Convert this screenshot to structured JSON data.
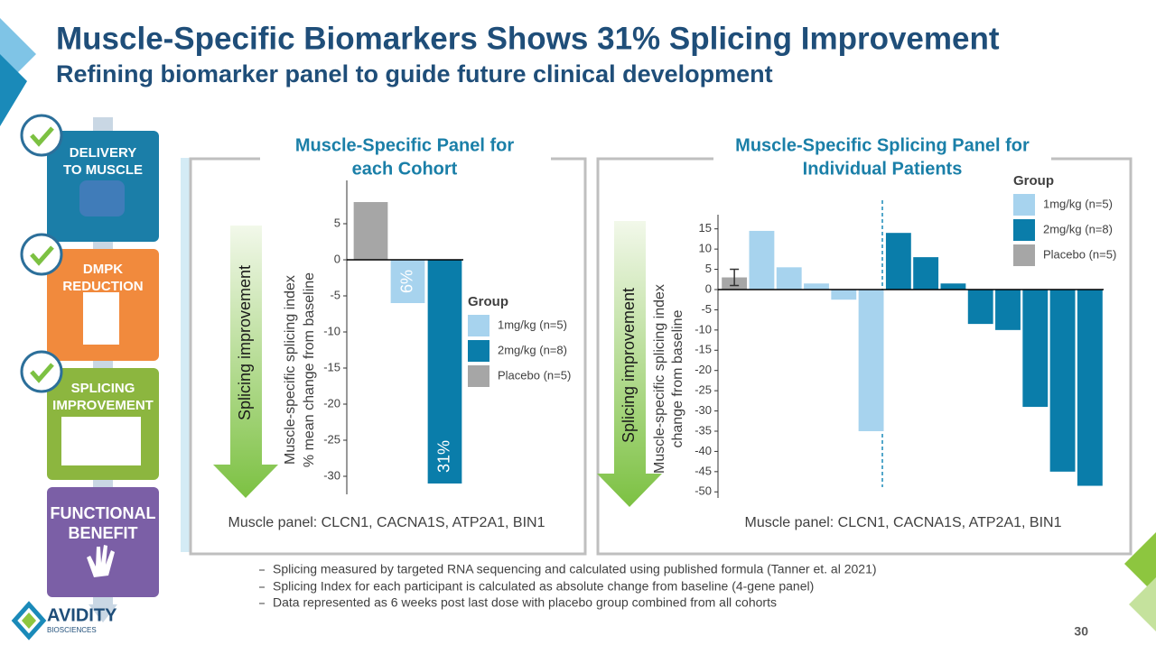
{
  "title": "Muscle-Specific Biomarkers Shows 31% Splicing Improvement",
  "subtitle": "Refining biomarker panel to guide future clinical development",
  "steps": [
    [
      "DELIVERY",
      "TO MUSCLE"
    ],
    [
      "DMPK",
      "REDUCTION"
    ],
    [
      "SPLICING",
      "IMPROVEMENT"
    ],
    [
      "FUNCTIONAL",
      "BENEFIT"
    ]
  ],
  "chart_data": [
    {
      "type": "bar",
      "title": [
        "Muscle-Specific Panel for",
        "each Cohort"
      ],
      "y_label": [
        "Muscle-specific splicing index",
        "% mean change from baseline"
      ],
      "arrow_label": "Splicing improvement",
      "note": "Muscle panel: CLCN1, CACNA1S, ATP2A1, BIN1",
      "legend_title": "Group",
      "categories": [
        null,
        null,
        null
      ],
      "series": [
        {
          "name": "1mg/kg (n=5)",
          "color": "#a7d3ee",
          "values": [
            null,
            -6,
            null
          ],
          "value_labels": [
            null,
            "6%",
            null
          ]
        },
        {
          "name": "2mg/kg (n=8)",
          "color": "#0a7daa",
          "values": [
            null,
            null,
            -31
          ],
          "value_labels": [
            null,
            null,
            "31%"
          ]
        },
        {
          "name": "Placebo (n=5)",
          "color": "#a6a6a6",
          "values": [
            8,
            null,
            null
          ]
        }
      ],
      "ylim": [
        -32.5,
        11
      ],
      "yticks": [
        5,
        0,
        -5,
        -10,
        -15,
        -20,
        -25,
        -30
      ]
    },
    {
      "type": "bar",
      "title": [
        "Muscle-Specific Splicing Panel for",
        "Individual Patients"
      ],
      "y_label": [
        "Muscle-specific splicing index",
        "change from baseline"
      ],
      "arrow_label": "Splicing improvement",
      "note": "Muscle panel: CLCN1, CACNA1S, ATP2A1, BIN1",
      "legend_title": "Group",
      "categories": [
        null,
        null,
        null,
        null,
        null,
        null,
        null,
        null,
        null,
        null,
        null,
        null,
        null,
        null
      ],
      "series": [
        {
          "name": "1mg/kg (n=5)",
          "color": "#a7d3ee",
          "values": [
            null,
            14.5,
            5.5,
            1.5,
            -2.5,
            -35,
            null,
            null,
            null,
            null,
            null,
            null,
            null,
            null
          ]
        },
        {
          "name": "2mg/kg (n=8)",
          "color": "#0a7daa",
          "values": [
            null,
            null,
            null,
            null,
            null,
            null,
            14,
            8,
            1.5,
            -8.5,
            -10,
            -29,
            -45,
            -48.5
          ]
        },
        {
          "name": "Placebo (n=5)",
          "color": "#a6a6a6",
          "values": [
            3,
            null,
            null,
            null,
            null,
            null,
            null,
            null,
            null,
            null,
            null,
            null,
            null,
            null
          ],
          "errors": [
            2,
            null,
            null,
            null,
            null,
            null,
            null,
            null,
            null,
            null,
            null,
            null,
            null,
            null
          ]
        }
      ],
      "ylim": [
        -51.5,
        18.5
      ],
      "yticks": [
        15,
        10,
        5,
        0,
        -5,
        -10,
        -15,
        -20,
        -25,
        -30,
        -35,
        -40,
        -45,
        -50
      ]
    }
  ],
  "footnotes": [
    "Splicing measured by targeted RNA sequencing and calculated using published formula (Tanner et. al 2021)",
    "Splicing Index for each participant is calculated as absolute change from baseline (4-gene panel)",
    "Data represented as 6 weeks post last dose with placebo group combined from all cohorts"
  ],
  "logo": "AVIDITY",
  "logo_sub": "BIOSCIENCES",
  "page_number": "30"
}
